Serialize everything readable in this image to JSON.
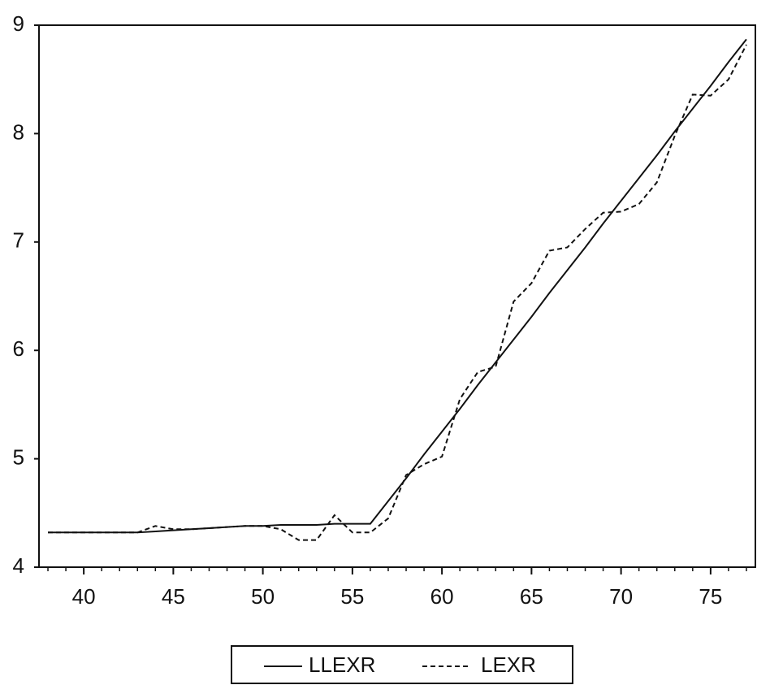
{
  "chart_data": {
    "type": "line",
    "x": [
      38,
      39,
      40,
      41,
      42,
      43,
      44,
      45,
      46,
      47,
      48,
      49,
      50,
      51,
      52,
      53,
      54,
      55,
      56,
      57,
      58,
      59,
      60,
      61,
      62,
      63,
      64,
      65,
      66,
      67,
      68,
      69,
      70,
      71,
      72,
      73,
      74,
      75,
      76,
      77
    ],
    "series": [
      {
        "name": "LLEXR",
        "color": "#111111",
        "dash": false,
        "values": [
          4.32,
          4.32,
          4.32,
          4.32,
          4.32,
          4.32,
          4.33,
          4.34,
          4.35,
          4.36,
          4.37,
          4.38,
          4.38,
          4.39,
          4.39,
          4.39,
          4.4,
          4.4,
          4.4,
          4.61,
          4.82,
          5.04,
          5.25,
          5.46,
          5.68,
          5.89,
          6.1,
          6.31,
          6.53,
          6.74,
          6.95,
          7.17,
          7.38,
          7.59,
          7.8,
          8.02,
          8.23,
          8.44,
          8.66,
          8.87
        ]
      },
      {
        "name": "LEXR",
        "color": "#111111",
        "dash": true,
        "values": [
          4.32,
          4.32,
          4.32,
          4.32,
          4.32,
          4.32,
          4.38,
          4.35,
          4.35,
          4.36,
          4.37,
          4.38,
          4.38,
          4.35,
          4.25,
          4.25,
          4.48,
          4.32,
          4.32,
          4.45,
          4.85,
          4.95,
          5.02,
          5.55,
          5.8,
          5.85,
          6.45,
          6.62,
          6.92,
          6.95,
          7.12,
          7.27,
          7.28,
          7.35,
          7.55,
          7.98,
          8.36,
          8.35,
          8.5,
          8.82
        ]
      }
    ],
    "xlim": [
      37.5,
      77.5
    ],
    "xticks": [
      40,
      45,
      50,
      55,
      60,
      65,
      70,
      75
    ],
    "ylim": [
      4,
      9
    ],
    "yticks": [
      4,
      5,
      6,
      7,
      8,
      9
    ]
  }
}
